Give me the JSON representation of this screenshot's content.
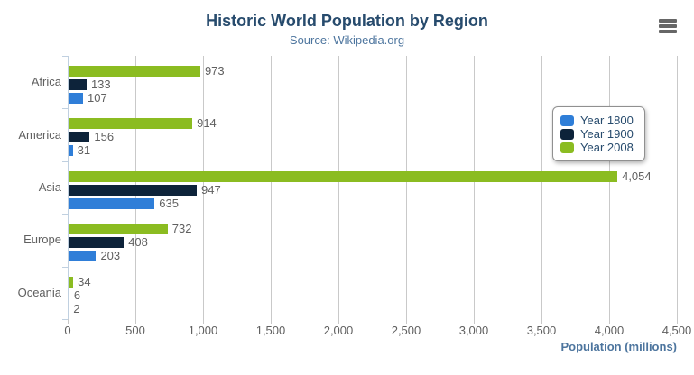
{
  "chart_data": {
    "type": "bar",
    "title": "Historic World Population by Region",
    "subtitle": "Source: Wikipedia.org",
    "categories": [
      "Africa",
      "America",
      "Asia",
      "Europe",
      "Oceania"
    ],
    "series": [
      {
        "name": "Year 1800",
        "color": "#2f7ed8",
        "values": [
          107,
          31,
          635,
          203,
          2
        ]
      },
      {
        "name": "Year 1900",
        "color": "#0d233a",
        "values": [
          133,
          156,
          947,
          408,
          6
        ]
      },
      {
        "name": "Year 2008",
        "color": "#8bbc21",
        "values": [
          973,
          914,
          4054,
          732,
          34
        ]
      }
    ],
    "bar_draw_order": [
      "Year 2008",
      "Year 1900",
      "Year 1800"
    ],
    "xlabel": "Population (millions)",
    "xlim": [
      0,
      4500
    ],
    "tick_interval": 500,
    "x_tick_labels": [
      "0",
      "500",
      "1,000",
      "1,500",
      "2,000",
      "2,500",
      "3,000",
      "3,500",
      "4,000",
      "4,500"
    ],
    "grid": true,
    "data_labels": true,
    "legend_position": "right-inside"
  },
  "toolbar": {
    "context_menu_icon": "hamburger-icon"
  },
  "colors": {
    "title": "#274b6d",
    "subtitle": "#4d759e",
    "axis_title": "#4d759e",
    "labels": "#606060",
    "grid": "#c9c9c9",
    "axis_line": "#c0d0e0",
    "legend_border": "#909090",
    "legend_text": "#274b6d",
    "menu_icon": "#666666",
    "background": "#ffffff"
  }
}
